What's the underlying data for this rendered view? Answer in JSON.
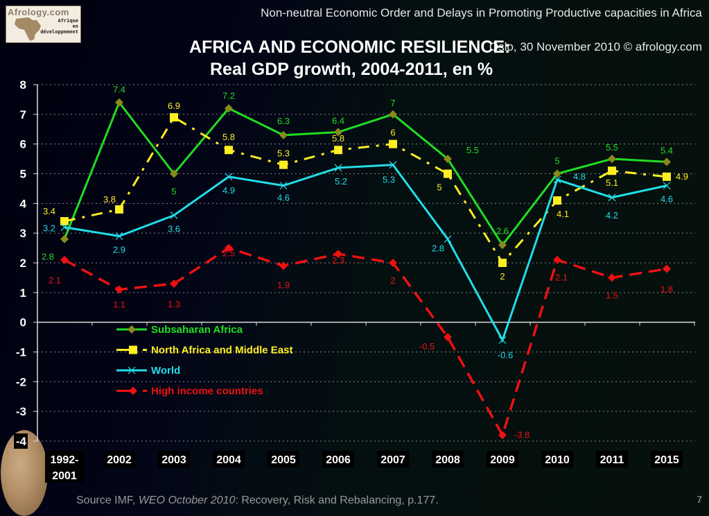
{
  "header": {
    "logo": {
      "brand": "Afrology.com",
      "tagline_lines": [
        "Afrique",
        "en",
        "développement"
      ]
    },
    "conference_title": "Non-neutral Economic Order and Delays in Promoting Productive capacities in Africa",
    "event_line": "Oslo, 30 November 2010  © afrology.com"
  },
  "footer": {
    "source_prefix": "Source IMF, ",
    "source_italic": "WEO October 2010",
    "source_suffix": ":  Recovery,  Risk and Rebalancing, p.177.",
    "page_number": "7"
  },
  "chart_data": {
    "type": "line",
    "title": "AFRICA AND ECONOMIC RESILIENCE:",
    "subtitle": "Real GDP growth, 2004-2011, en %",
    "xlabel": "",
    "ylabel": "",
    "categories": [
      "1992-2001",
      "2002",
      "2003",
      "2004",
      "2005",
      "2006",
      "2007",
      "2008",
      "2009",
      "2010",
      "2011",
      "2015"
    ],
    "ylim": [
      -4,
      8
    ],
    "yticks": [
      8,
      7,
      6,
      5,
      4,
      3,
      2,
      1,
      0,
      -1,
      -2,
      -3,
      -4
    ],
    "grid": true,
    "legend_position": "center-left",
    "series": [
      {
        "name": "Subsaharan Africa",
        "color": "#22dd22",
        "marker": "diamond",
        "marker_color": "#8a8a1a",
        "dash": "solid",
        "values": [
          2.8,
          7.4,
          5,
          7.2,
          6.3,
          6.4,
          7,
          5.5,
          2.6,
          5,
          5.5,
          5.4
        ]
      },
      {
        "name": "North Africa and Middle East",
        "color": "#ffee22",
        "marker": "square",
        "marker_color": "#ffee22",
        "dash": "dashdot",
        "values": [
          3.4,
          3.8,
          6.9,
          5.8,
          5.3,
          5.8,
          6,
          5,
          2,
          4.1,
          5.1,
          4.9
        ]
      },
      {
        "name": "World",
        "color": "#22dde8",
        "marker": "x",
        "marker_color": "#22dde8",
        "dash": "solid",
        "values": [
          3.2,
          2.9,
          3.6,
          4.9,
          4.6,
          5.2,
          5.3,
          2.8,
          -0.6,
          4.8,
          4.2,
          4.6
        ]
      },
      {
        "name": "High income countries",
        "color": "#ee1111",
        "marker": "diamond",
        "marker_color": "#ee1111",
        "dash": "dashed",
        "values": [
          2.1,
          1.1,
          1.3,
          2.5,
          1.9,
          2.3,
          2,
          -0.5,
          -3.8,
          2.1,
          1.5,
          1.8
        ]
      }
    ]
  }
}
